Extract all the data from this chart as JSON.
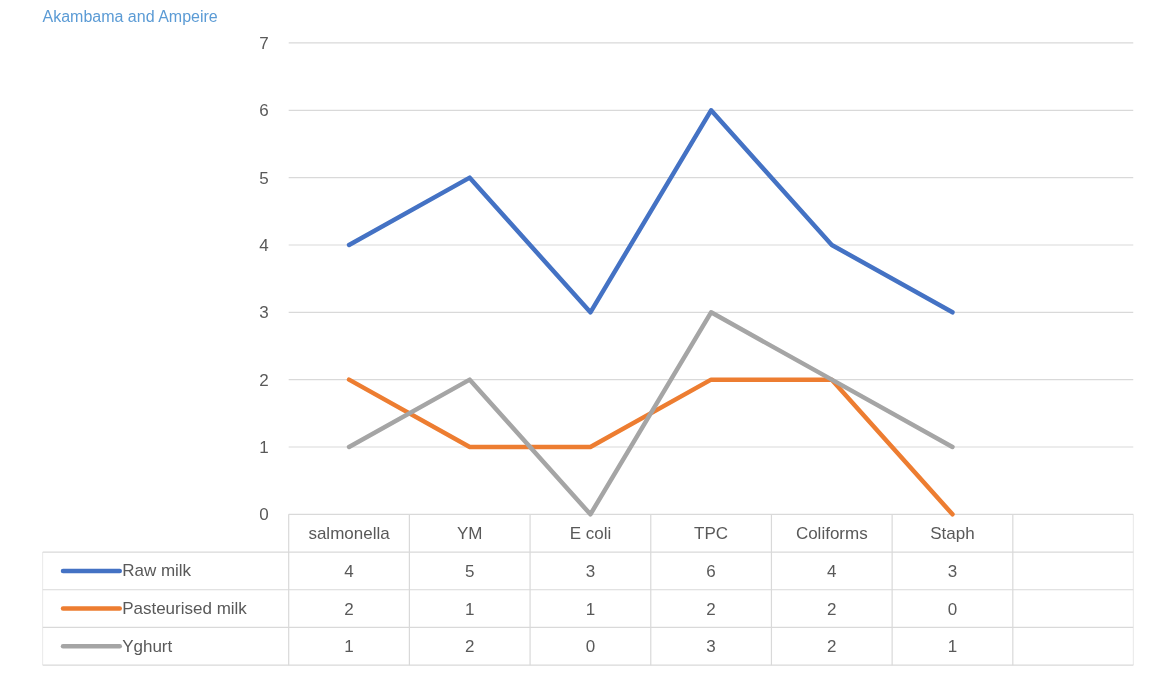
{
  "chart_data": {
    "type": "line",
    "annotations": [
      "Akambama and Ampeire"
    ],
    "categories": [
      "salmonella",
      "YM",
      "E coli",
      "TPC",
      "Coliforms",
      "Staph",
      null
    ],
    "series": [
      {
        "name": "Raw milk",
        "color": "#4472c4",
        "values": [
          4,
          5,
          3,
          6,
          4,
          3,
          null
        ]
      },
      {
        "name": "Pasteurised milk",
        "color": "#ed7d31",
        "values": [
          2,
          1,
          1,
          2,
          2,
          0,
          null
        ]
      },
      {
        "name": "Yghurt",
        "color": "#a5a5a5",
        "values": [
          1,
          2,
          0,
          3,
          2,
          1,
          null
        ]
      }
    ],
    "ylim": [
      0,
      7
    ],
    "yticks": [
      0,
      1,
      2,
      3,
      4,
      5,
      6,
      7
    ],
    "grid": "y",
    "data_labels": true,
    "legend": "bottom"
  }
}
